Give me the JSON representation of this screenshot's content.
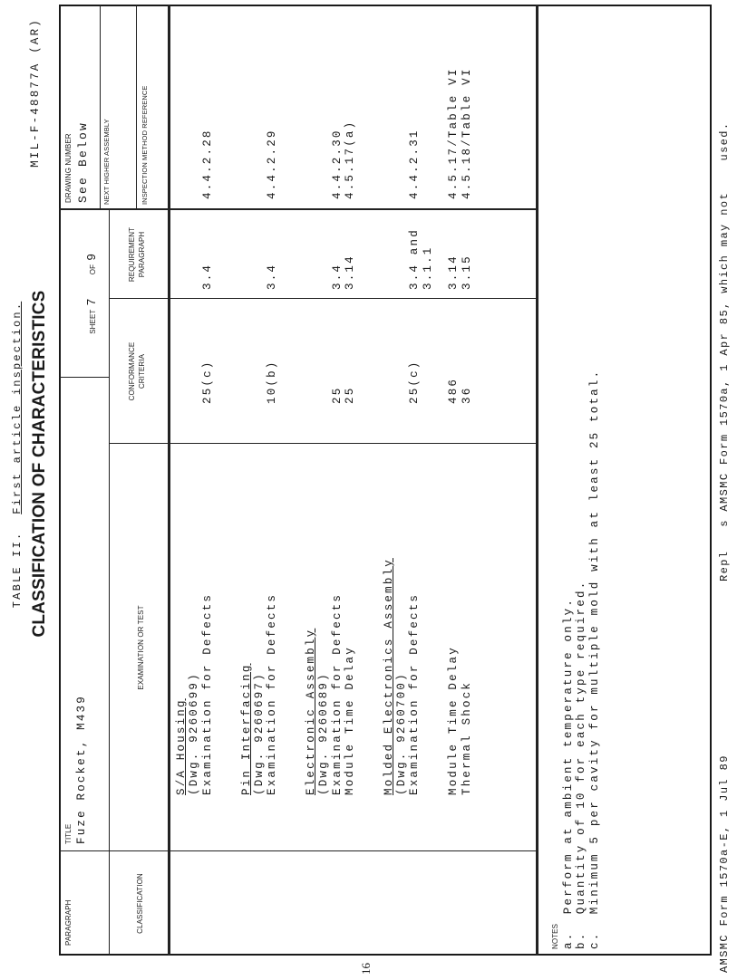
{
  "header": {
    "table_number": "TABLE II.",
    "table_caption": "First article inspection.",
    "heading": "CLASSIFICATION OF CHARACTERISTICS",
    "spec_number": "MIL-F-48877A (AR)"
  },
  "form": {
    "paragraph_label": "PARAGRAPH",
    "title_label": "TITLE",
    "title_value": "Fuze Rocket, M439",
    "sheet_label": "SHEET",
    "sheet_value": "7",
    "of_label": "OF",
    "of_value": "9",
    "drawing_number_label": "DRAWING NUMBER",
    "drawing_number_value": "See Below",
    "next_higher_assembly_label": "NEXT HIGHER ASSEMBLY",
    "inspection_method_label": "INSPECTION METHOD REFERENCE",
    "classification_label": "CLASSIFICATION",
    "examination_label": "EXAMINATION OR TEST",
    "conformance_label_1": "CONFORMANCE",
    "conformance_label_2": "CRITERIA",
    "requirement_label_1": "REQUIREMENT",
    "requirement_label_2": "PARAGRAPH"
  },
  "sections": [
    {
      "lines": [
        {
          "exam": "S/A Housing",
          "underline": true
        },
        {
          "exam": "(Dwg. 9260699)"
        },
        {
          "exam": "Examination for Defects",
          "conformance": "25(c)",
          "requirement": "3.4",
          "inspection": "4.4.2.28"
        }
      ]
    },
    {
      "lines": [
        {
          "exam": "Pin Interfacing",
          "underline": true
        },
        {
          "exam": "(Dwg. 9260697)"
        },
        {
          "exam": "Examination for Defects",
          "conformance": "10(b)",
          "requirement": "3.4",
          "inspection": "4.4.2.29"
        }
      ]
    },
    {
      "lines": [
        {
          "exam": "Electronic Assembly",
          "underline": true
        },
        {
          "exam": "(Dwg. 9260689)"
        },
        {
          "exam": "Examination for Defects",
          "conformance": "25",
          "requirement": "3.4",
          "inspection": "4.4.2.30"
        },
        {
          "exam": "Module Time Delay",
          "conformance": "25",
          "requirement": "3.14",
          "inspection": "4.5.17(a)"
        }
      ]
    },
    {
      "lines": [
        {
          "exam": "Molded Electronics Assembly",
          "underline": true
        },
        {
          "exam": "(Dwg. 9260700)"
        },
        {
          "exam": "Examination for Defects",
          "conformance": "25(c)",
          "requirement": "3.4 and\n3.1.1",
          "inspection": "4.4.2.31"
        }
      ]
    },
    {
      "lines": [
        {
          "exam": "Module Time Delay",
          "conformance": "486",
          "requirement": "3.14",
          "inspection": "4.5.17/Table VI"
        },
        {
          "exam": "Thermal Shock",
          "conformance": "36",
          "requirement": "3.15",
          "inspection": "4.5.18/Table VI"
        }
      ]
    }
  ],
  "notes": {
    "label": "NOTES",
    "items": [
      {
        "marker": "a.",
        "text": "Perform at ambient temperature only."
      },
      {
        "marker": "b.",
        "text": "Quantity of 10 for each type required."
      },
      {
        "marker": "c.",
        "text": "Minimum 5 per cavity for multiple mold with at least 25 total."
      }
    ]
  },
  "footer": {
    "form_id": "AMSMC Form 1570a-E, 1 Jul 89",
    "replaces": "Repl   s AMSMC Form 1570a, 1 Apr 85, which may not    used.",
    "page_number": "16"
  }
}
